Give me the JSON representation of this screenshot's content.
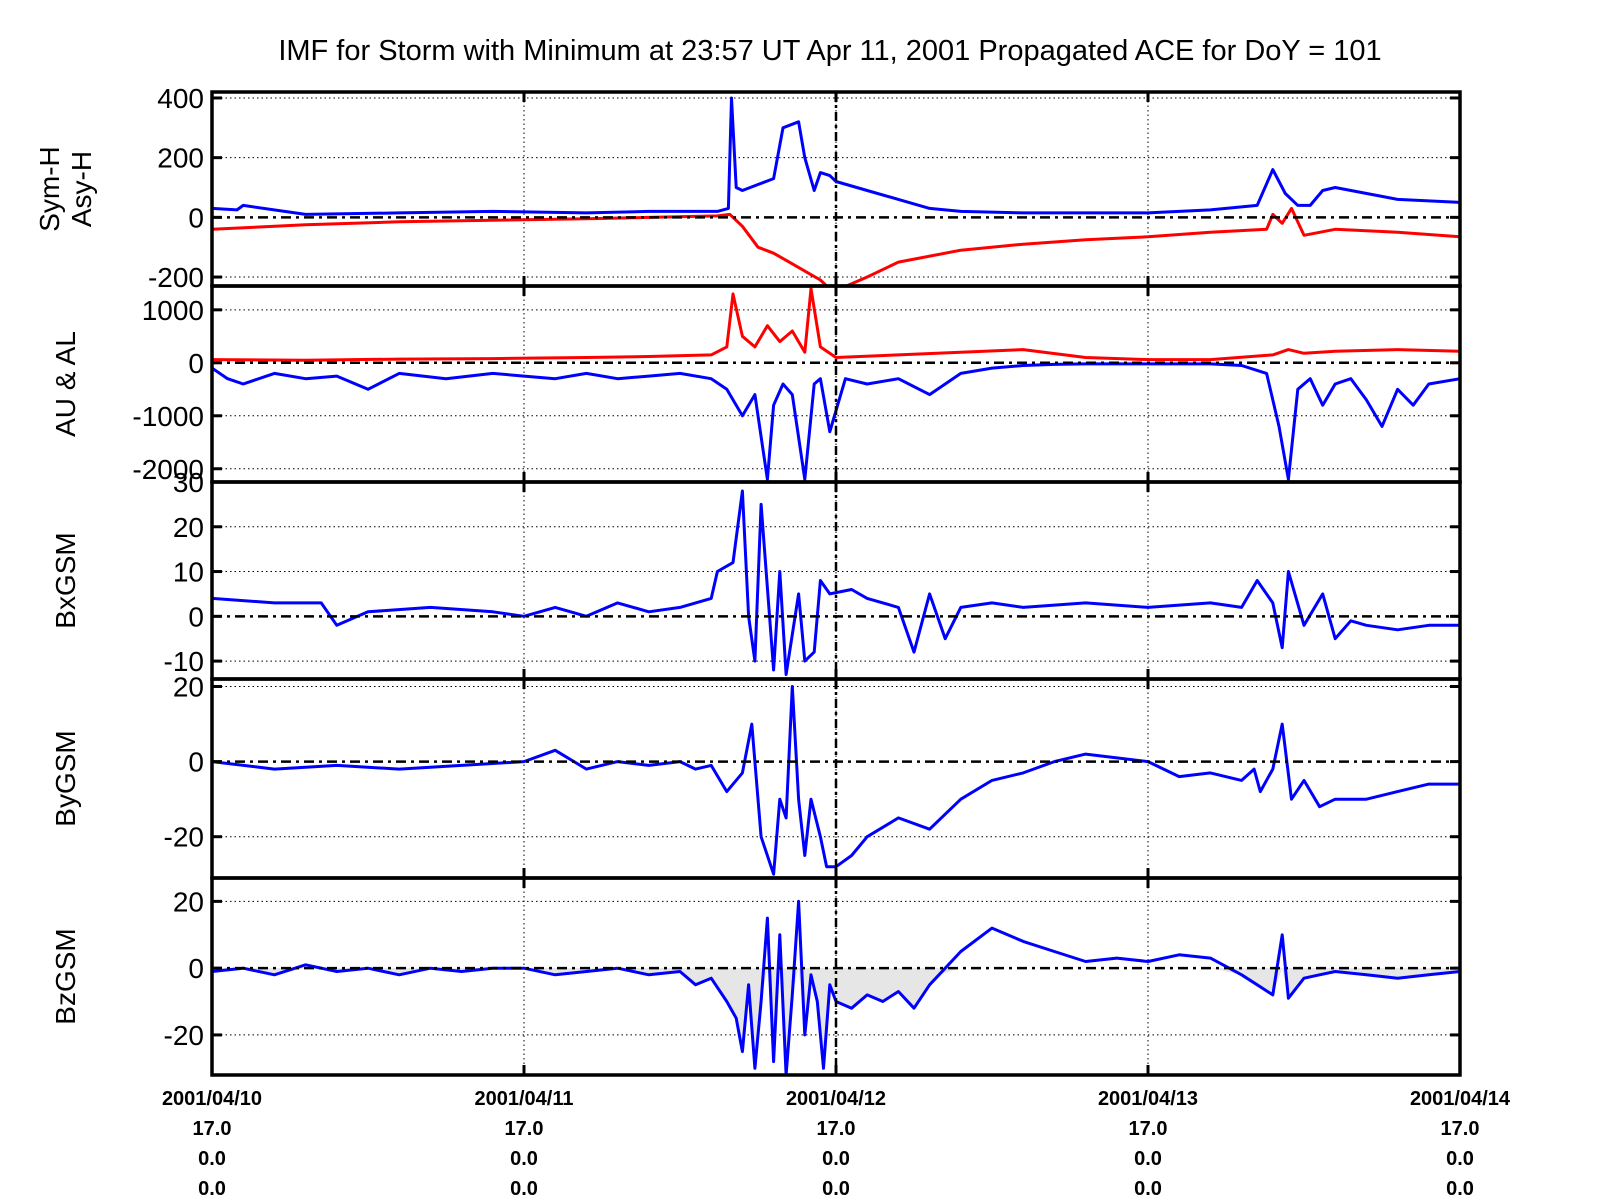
{
  "title": "IMF for Storm with Minimum at 23:57 UT Apr 11, 2001  Propagated ACE for DoY = 101",
  "colors": {
    "blue": "#0000ff",
    "red": "#ff0000",
    "axes": "#000000",
    "fill": "#e6e6e6"
  },
  "chart_data": {
    "type": "line",
    "x_start_day": 0,
    "x_end_day": 4,
    "storm_min_marker_day": 2,
    "x_tick_labels": [
      {
        "day": 0,
        "lines": [
          "2001/04/10",
          "17.0",
          "0.0",
          "0.0"
        ]
      },
      {
        "day": 1,
        "lines": [
          "2001/04/11",
          "17.0",
          "0.0",
          "0.0"
        ]
      },
      {
        "day": 2,
        "lines": [
          "2001/04/12",
          "17.0",
          "0.0",
          "0.0"
        ]
      },
      {
        "day": 3,
        "lines": [
          "2001/04/13",
          "17.0",
          "0.0",
          "0.0"
        ]
      },
      {
        "day": 4,
        "lines": [
          "2001/04/14",
          "17.0",
          "0.0",
          "0.0"
        ]
      }
    ],
    "panels": [
      {
        "ylabel": [
          "Sym-H",
          "Asy-H"
        ],
        "ylim": [
          -230,
          420
        ],
        "yticks": [
          -200,
          0,
          200,
          400
        ],
        "ytick_labels": [
          "-200",
          "0",
          "200",
          "400"
        ],
        "series": [
          {
            "color": "blue",
            "x": [
              0,
              0.08,
              0.1,
              0.3,
              0.6,
              0.9,
              1.2,
              1.4,
              1.62,
              1.655,
              1.665,
              1.68,
              1.7,
              1.75,
              1.8,
              1.83,
              1.88,
              1.9,
              1.93,
              1.95,
              1.98,
              2.0,
              2.1,
              2.2,
              2.3,
              2.4,
              2.6,
              2.8,
              3.0,
              3.2,
              3.35,
              3.4,
              3.44,
              3.48,
              3.52,
              3.56,
              3.6,
              3.8,
              4.0
            ],
            "y": [
              30,
              25,
              40,
              10,
              15,
              20,
              15,
              20,
              20,
              30,
              400,
              100,
              90,
              110,
              130,
              300,
              320,
              200,
              90,
              150,
              140,
              120,
              90,
              60,
              30,
              20,
              15,
              15,
              15,
              25,
              40,
              160,
              80,
              40,
              40,
              90,
              100,
              60,
              50
            ]
          },
          {
            "color": "red",
            "x": [
              0,
              0.3,
              0.6,
              0.9,
              1.2,
              1.4,
              1.62,
              1.66,
              1.7,
              1.75,
              1.8,
              1.85,
              1.9,
              1.95,
              1.99,
              2.0,
              2.1,
              2.2,
              2.4,
              2.6,
              2.8,
              3.0,
              3.2,
              3.38,
              3.4,
              3.43,
              3.46,
              3.5,
              3.6,
              3.8,
              4.0
            ],
            "y": [
              -40,
              -25,
              -15,
              -10,
              -5,
              0,
              5,
              10,
              -30,
              -100,
              -120,
              -150,
              -180,
              -210,
              -250,
              -245,
              -200,
              -150,
              -110,
              -90,
              -75,
              -65,
              -50,
              -40,
              10,
              -20,
              30,
              -60,
              -40,
              -50,
              -65
            ]
          }
        ]
      },
      {
        "ylabel": [
          "AU & AL"
        ],
        "ylim": [
          -2250,
          1450
        ],
        "yticks": [
          -2000,
          -1000,
          0,
          1000
        ],
        "ytick_labels": [
          "-2000",
          "-1000",
          "0",
          "1000"
        ],
        "series": [
          {
            "color": "red",
            "x": [
              0,
              0.3,
              0.6,
              0.9,
              1.2,
              1.4,
              1.6,
              1.65,
              1.67,
              1.7,
              1.74,
              1.78,
              1.82,
              1.86,
              1.9,
              1.92,
              1.95,
              2.0,
              2.2,
              2.4,
              2.6,
              2.8,
              3.0,
              3.2,
              3.4,
              3.45,
              3.5,
              3.6,
              3.8,
              4.0
            ],
            "y": [
              60,
              50,
              70,
              80,
              100,
              120,
              150,
              300,
              1300,
              500,
              300,
              700,
              400,
              600,
              200,
              1400,
              300,
              100,
              150,
              200,
              250,
              100,
              60,
              60,
              150,
              250,
              180,
              220,
              250,
              220
            ]
          },
          {
            "color": "blue",
            "x": [
              0,
              0.05,
              0.1,
              0.2,
              0.3,
              0.4,
              0.5,
              0.6,
              0.75,
              0.9,
              1.0,
              1.1,
              1.2,
              1.3,
              1.4,
              1.5,
              1.6,
              1.65,
              1.7,
              1.74,
              1.78,
              1.8,
              1.83,
              1.86,
              1.9,
              1.93,
              1.95,
              1.98,
              2.03,
              2.1,
              2.2,
              2.3,
              2.4,
              2.5,
              2.6,
              2.7,
              2.8,
              3.0,
              3.2,
              3.3,
              3.38,
              3.42,
              3.45,
              3.48,
              3.52,
              3.56,
              3.6,
              3.65,
              3.7,
              3.75,
              3.8,
              3.85,
              3.9,
              4.0
            ],
            "y": [
              -100,
              -300,
              -400,
              -200,
              -300,
              -250,
              -500,
              -200,
              -300,
              -200,
              -250,
              -300,
              -200,
              -300,
              -250,
              -200,
              -300,
              -500,
              -1000,
              -600,
              -2200,
              -800,
              -400,
              -600,
              -2200,
              -400,
              -300,
              -1300,
              -300,
              -400,
              -300,
              -600,
              -200,
              -100,
              -50,
              -30,
              -20,
              -20,
              -20,
              -50,
              -200,
              -1200,
              -2200,
              -500,
              -300,
              -800,
              -400,
              -300,
              -700,
              -1200,
              -500,
              -800,
              -400,
              -300
            ]
          }
        ]
      },
      {
        "ylabel": [
          "BxGSM"
        ],
        "ylim": [
          -14,
          30
        ],
        "yticks": [
          -10,
          0,
          10,
          20,
          30
        ],
        "ytick_labels": [
          "-10",
          "0",
          "10",
          "20",
          "30"
        ],
        "series": [
          {
            "color": "blue",
            "x": [
              0,
              0.2,
              0.35,
              0.4,
              0.5,
              0.7,
              0.9,
              1.0,
              1.1,
              1.2,
              1.3,
              1.4,
              1.5,
              1.6,
              1.62,
              1.67,
              1.7,
              1.72,
              1.74,
              1.76,
              1.8,
              1.82,
              1.84,
              1.88,
              1.9,
              1.93,
              1.95,
              1.98,
              2.05,
              2.1,
              2.2,
              2.25,
              2.3,
              2.35,
              2.4,
              2.5,
              2.6,
              2.8,
              3.0,
              3.2,
              3.3,
              3.35,
              3.4,
              3.43,
              3.45,
              3.5,
              3.56,
              3.6,
              3.65,
              3.7,
              3.8,
              3.9,
              4.0
            ],
            "y": [
              4,
              3,
              3,
              -2,
              1,
              2,
              1,
              0,
              2,
              0,
              3,
              1,
              2,
              4,
              10,
              12,
              28,
              0,
              -10,
              25,
              -12,
              10,
              -13,
              5,
              -10,
              -8,
              8,
              5,
              6,
              4,
              2,
              -8,
              5,
              -5,
              2,
              3,
              2,
              3,
              2,
              3,
              2,
              8,
              3,
              -7,
              10,
              -2,
              5,
              -5,
              -1,
              -2,
              -3,
              -2,
              -2
            ]
          }
        ]
      },
      {
        "ylabel": [
          "ByGSM"
        ],
        "ylim": [
          -31,
          22
        ],
        "yticks": [
          -20,
          0,
          20
        ],
        "ytick_labels": [
          "-20",
          "0",
          "20"
        ],
        "series": [
          {
            "color": "blue",
            "x": [
              0,
              0.2,
              0.4,
              0.6,
              0.8,
              1.0,
              1.1,
              1.2,
              1.3,
              1.4,
              1.5,
              1.55,
              1.6,
              1.65,
              1.7,
              1.73,
              1.76,
              1.8,
              1.82,
              1.84,
              1.86,
              1.88,
              1.9,
              1.92,
              1.95,
              1.97,
              2.0,
              2.05,
              2.1,
              2.2,
              2.3,
              2.4,
              2.5,
              2.6,
              2.7,
              2.8,
              3.0,
              3.1,
              3.2,
              3.3,
              3.34,
              3.36,
              3.4,
              3.43,
              3.46,
              3.5,
              3.55,
              3.6,
              3.7,
              3.8,
              3.9,
              4.0
            ],
            "y": [
              0,
              -2,
              -1,
              -2,
              -1,
              0,
              3,
              -2,
              0,
              -1,
              0,
              -2,
              -1,
              -8,
              -3,
              10,
              -20,
              -30,
              -10,
              -15,
              20,
              -10,
              -25,
              -10,
              -20,
              -28,
              -28,
              -25,
              -20,
              -15,
              -18,
              -10,
              -5,
              -3,
              0,
              2,
              0,
              -4,
              -3,
              -5,
              -2,
              -8,
              -2,
              10,
              -10,
              -5,
              -12,
              -10,
              -10,
              -8,
              -6,
              -6
            ]
          }
        ]
      },
      {
        "ylabel": [
          "BzGSM"
        ],
        "ylim": [
          -32,
          27
        ],
        "yticks": [
          -20,
          0,
          20
        ],
        "ytick_labels": [
          "-20",
          "0",
          "20"
        ],
        "series": [
          {
            "color": "blue",
            "fill_negative": true,
            "x": [
              0,
              0.1,
              0.2,
              0.3,
              0.4,
              0.5,
              0.6,
              0.7,
              0.8,
              0.9,
              1.0,
              1.1,
              1.2,
              1.3,
              1.4,
              1.5,
              1.55,
              1.6,
              1.65,
              1.68,
              1.7,
              1.72,
              1.74,
              1.76,
              1.78,
              1.8,
              1.82,
              1.84,
              1.86,
              1.88,
              1.9,
              1.92,
              1.94,
              1.96,
              1.98,
              2.0,
              2.05,
              2.1,
              2.15,
              2.2,
              2.25,
              2.3,
              2.33,
              2.4,
              2.5,
              2.6,
              2.7,
              2.8,
              2.9,
              3.0,
              3.1,
              3.2,
              3.3,
              3.35,
              3.4,
              3.43,
              3.45,
              3.5,
              3.55,
              3.6,
              3.7,
              3.8,
              3.9,
              4.0
            ],
            "y": [
              -1,
              0,
              -2,
              1,
              -1,
              0,
              -2,
              0,
              -1,
              0,
              0,
              -2,
              -1,
              0,
              -2,
              -1,
              -5,
              -3,
              -10,
              -15,
              -25,
              -5,
              -30,
              -10,
              15,
              -28,
              10,
              -32,
              -8,
              20,
              -20,
              -2,
              -10,
              -30,
              -5,
              -10,
              -12,
              -8,
              -10,
              -7,
              -12,
              -5,
              -2,
              5,
              12,
              8,
              5,
              2,
              3,
              2,
              4,
              3,
              -2,
              -5,
              -8,
              10,
              -9,
              -3,
              -2,
              -1,
              -2,
              -3,
              -2,
              -1
            ]
          }
        ]
      }
    ]
  }
}
